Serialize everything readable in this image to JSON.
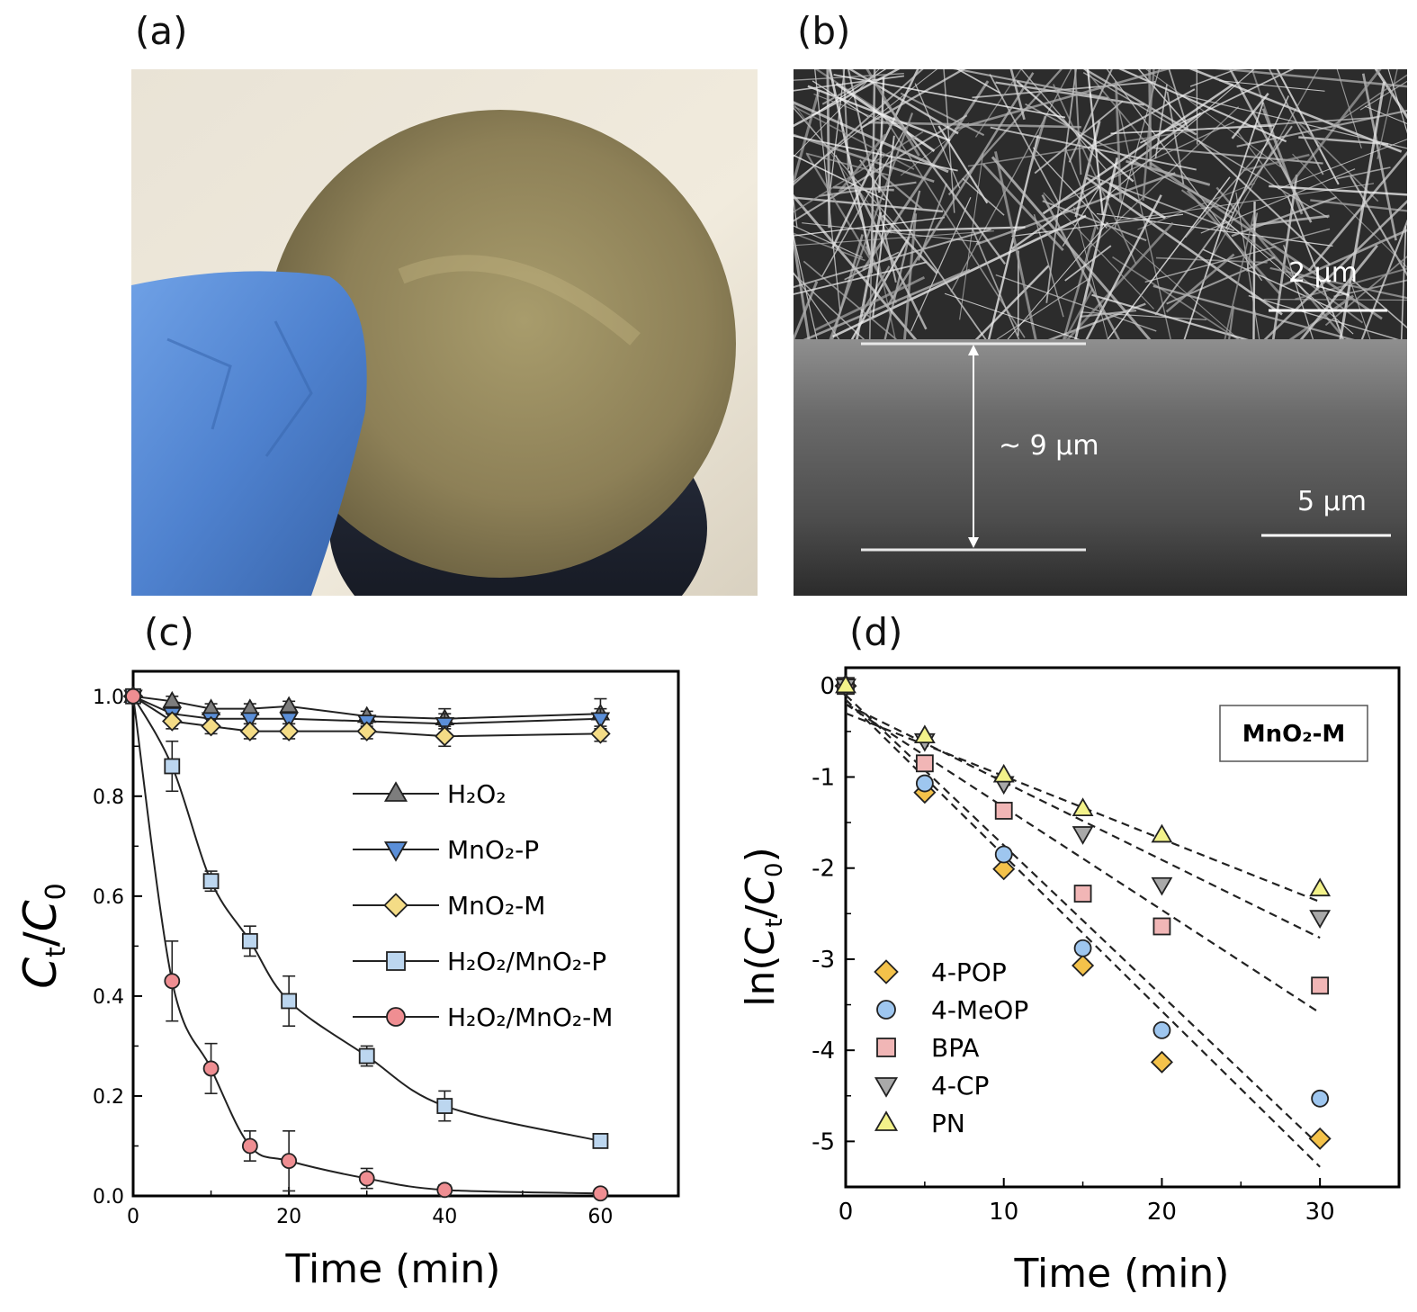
{
  "panels": {
    "a": {
      "label": "(a)"
    },
    "b": {
      "label": "(b)",
      "scale_top": "2 μm",
      "thickness": "~ 9 μm",
      "scale_bottom": "5 μm"
    },
    "c": {
      "label": "(c)"
    },
    "d": {
      "label": "(d)",
      "box_label": "MnO₂-M"
    }
  },
  "colors": {
    "H2O2": "#7d7d7d",
    "MnO2_P": "#5b8fd8",
    "MnO2_M": "#f4dc86",
    "H2O2_MnO2_P": "#bcd6ef",
    "H2O2_MnO2_M": "#ef8e92",
    "POP": "#f4c24a",
    "MeOP": "#9ec6ef",
    "BPA": "#f1b6b6",
    "CP": "#a9a9a9",
    "PN": "#f3f28a"
  },
  "chart_data": [
    {
      "type": "line",
      "xlabel": "Time (min)",
      "ylabel": "Ct/C0",
      "xlim": [
        0,
        70
      ],
      "ylim": [
        0,
        1.05
      ],
      "xticks": [
        0,
        20,
        40,
        60
      ],
      "yticks": [
        "0.0",
        "0.2",
        "0.4",
        "0.6",
        "0.8",
        "1.0"
      ],
      "legend_position": "center-right",
      "x": [
        0,
        5,
        10,
        15,
        20,
        30,
        40,
        60
      ],
      "series": [
        {
          "name": "H₂O₂",
          "marker": "triangle-up",
          "values": [
            1.0,
            0.99,
            0.975,
            0.975,
            0.98,
            0.96,
            0.955,
            0.965
          ],
          "errors": [
            0,
            0.01,
            0.01,
            0.01,
            0.01,
            0.01,
            0.02,
            0.03
          ]
        },
        {
          "name": "MnO₂-P",
          "marker": "triangle-down",
          "values": [
            1.0,
            0.965,
            0.955,
            0.955,
            0.955,
            0.95,
            0.945,
            0.955
          ],
          "errors": [
            0,
            0.01,
            0.01,
            0.01,
            0.01,
            0.01,
            0.02,
            0.02
          ]
        },
        {
          "name": "MnO₂-M",
          "marker": "diamond",
          "values": [
            1.0,
            0.95,
            0.94,
            0.93,
            0.93,
            0.93,
            0.92,
            0.925
          ],
          "errors": [
            0,
            0.015,
            0.015,
            0.015,
            0.015,
            0.015,
            0.02,
            0.015
          ]
        },
        {
          "name": "H₂O₂/MnO₂-P",
          "marker": "square",
          "values": [
            1.0,
            0.86,
            0.63,
            0.51,
            0.39,
            0.28,
            0.18,
            0.11
          ],
          "errors": [
            0,
            0.05,
            0.02,
            0.03,
            0.05,
            0.02,
            0.03,
            0.01
          ]
        },
        {
          "name": "H₂O₂/MnO₂-M",
          "marker": "circle",
          "values": [
            1.0,
            0.43,
            0.255,
            0.1,
            0.07,
            0.035,
            0.012,
            0.005
          ],
          "errors": [
            0,
            0.08,
            0.05,
            0.03,
            0.06,
            0.02,
            0.01,
            0.005
          ]
        }
      ]
    },
    {
      "type": "scatter",
      "xlabel": "Time (min)",
      "ylabel": "ln(Ct/C0)",
      "xlim": [
        0,
        35
      ],
      "ylim": [
        -5.5,
        0.2
      ],
      "xticks": [
        0,
        10,
        20,
        30
      ],
      "yticks": [
        0,
        -1,
        -2,
        -3,
        -4,
        -5
      ],
      "legend_position": "bottom-left",
      "x": [
        0,
        5,
        10,
        15,
        20,
        30
      ],
      "series": [
        {
          "name": "4-POP",
          "marker": "diamond",
          "values": [
            0,
            -1.17,
            -2.01,
            -3.07,
            -4.13,
            -4.97
          ],
          "fit": [
            -0.15,
            -0.171
          ]
        },
        {
          "name": "4-MeOP",
          "marker": "circle",
          "values": [
            0,
            -1.07,
            -1.85,
            -2.88,
            -3.78,
            -4.53
          ],
          "fit": [
            -0.1,
            -0.165
          ]
        },
        {
          "name": "BPA",
          "marker": "square",
          "values": [
            0,
            -0.85,
            -1.37,
            -2.28,
            -2.64,
            -3.29
          ],
          "fit": [
            -0.2,
            -0.113
          ]
        },
        {
          "name": "4-CP",
          "marker": "triangle-down",
          "values": [
            0,
            -0.6,
            -1.07,
            -1.62,
            -2.18,
            -2.54
          ],
          "fit": [
            -0.2,
            -0.0855
          ]
        },
        {
          "name": "PN",
          "marker": "triangle-up",
          "values": [
            0,
            -0.55,
            -0.98,
            -1.35,
            -1.64,
            -2.23
          ],
          "fit": [
            -0.3,
            -0.069
          ]
        }
      ]
    }
  ]
}
